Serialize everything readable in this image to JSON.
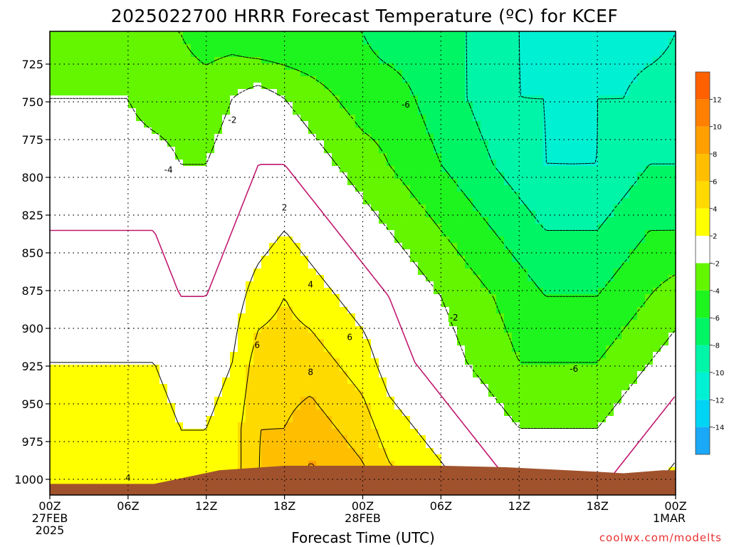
{
  "chart_data": {
    "type": "heatmap",
    "title": "2025022700 HRRR Forecast Temperature (ºC) for KCEF",
    "xlabel": "Forecast Time (UTC)",
    "ylabel": "",
    "x_ticks": [
      {
        "h": 0,
        "lines": [
          "00Z",
          "27FEB",
          "2025"
        ]
      },
      {
        "h": 6,
        "lines": [
          "06Z"
        ]
      },
      {
        "h": 12,
        "lines": [
          "12Z"
        ]
      },
      {
        "h": 18,
        "lines": [
          "18Z"
        ]
      },
      {
        "h": 24,
        "lines": [
          "00Z",
          "28FEB"
        ]
      },
      {
        "h": 30,
        "lines": [
          "06Z"
        ]
      },
      {
        "h": 36,
        "lines": [
          "12Z"
        ]
      },
      {
        "h": 42,
        "lines": [
          "18Z"
        ]
      },
      {
        "h": 48,
        "lines": [
          "00Z",
          "1MAR"
        ]
      }
    ],
    "xlim": [
      0,
      48
    ],
    "y_ticks": [
      725,
      750,
      775,
      800,
      825,
      850,
      875,
      900,
      925,
      950,
      975,
      1000
    ],
    "ylim": [
      1010,
      704
    ],
    "grid": true,
    "colorbar": {
      "labels": [
        "-14",
        "-12",
        "-10",
        "-8",
        "-6",
        "-4",
        "-2",
        "2",
        "4",
        "6",
        "8",
        "10",
        "12"
      ],
      "colors": [
        "#1aa8f7",
        "#00d4f5",
        "#00f0d4",
        "#00f5a8",
        "#00f564",
        "#1ef51e",
        "#64f500",
        "#ffffff",
        "#ffff00",
        "#ffda00",
        "#ffbf00",
        "#ff9f00",
        "#ff7f00",
        "#ff6000"
      ],
      "placement": "right"
    },
    "contour_labels": [
      {
        "text": "-6",
        "h": 27.3,
        "p": 752
      },
      {
        "text": "-6",
        "h": 40.2,
        "p": 927
      },
      {
        "text": "-4",
        "h": 9.1,
        "p": 795
      },
      {
        "text": "-2",
        "h": 14.0,
        "p": 762
      },
      {
        "text": "-2",
        "h": 31.0,
        "p": 893
      },
      {
        "text": "2",
        "h": 18.0,
        "p": 820
      },
      {
        "text": "4",
        "h": 20.0,
        "p": 871
      },
      {
        "text": "4",
        "h": 6.0,
        "p": 999
      },
      {
        "text": "6",
        "h": 15.9,
        "p": 911
      },
      {
        "text": "6",
        "h": 23.0,
        "p": 906
      },
      {
        "text": "8",
        "h": 20.0,
        "p": 929
      }
    ],
    "terrain_color": "#a0522d",
    "series": [
      {
        "values": [
          -3,
          -3,
          -3,
          -3,
          -4,
          -4,
          -5,
          -5,
          -6,
          -6,
          -6,
          -6,
          -6,
          -7,
          -7,
          -8,
          -8,
          -9,
          -10,
          -11,
          -12,
          -12,
          -11,
          -11,
          -10
        ]
      },
      {
        "values": [
          -2,
          -2,
          -2,
          -2,
          -3,
          -3,
          -3,
          -2,
          -1,
          -2,
          -3,
          -4,
          -5,
          -5,
          -6,
          -7,
          -8,
          -9,
          -10,
          -10,
          -11,
          -10,
          -10,
          -9,
          -9
        ]
      },
      {
        "values": [
          -1,
          -1,
          -1,
          -1,
          -1,
          -2,
          -2,
          -1,
          0,
          0,
          -1,
          -2,
          -3,
          -4,
          -5,
          -6,
          -7,
          -8,
          -9,
          -10,
          -10,
          -10,
          -9,
          -8,
          -8
        ]
      },
      {
        "values": [
          0,
          0,
          0,
          0,
          0,
          -1,
          -1,
          0,
          1,
          2,
          1,
          0,
          -1,
          -2,
          -3,
          -4,
          -5,
          -6,
          -7,
          -8,
          -8,
          -8,
          -7,
          -6,
          -6
        ]
      },
      {
        "values": [
          1,
          1,
          1,
          1,
          1,
          0,
          0,
          1,
          3,
          4,
          3,
          2,
          1,
          0,
          -1,
          -2,
          -3,
          -4,
          -5,
          -6,
          -6,
          -6,
          -5,
          -4,
          -3
        ]
      },
      {
        "values": [
          2,
          2,
          2,
          2,
          2,
          1,
          1,
          2,
          5,
          5,
          5,
          4,
          3,
          1,
          0,
          -1,
          -2,
          -3,
          -4,
          -4,
          -4,
          -4,
          -3,
          -2,
          -1
        ]
      },
      {
        "values": [
          3,
          3,
          3,
          3,
          3,
          2,
          2,
          3,
          6,
          6,
          7,
          6,
          5,
          3,
          2,
          1,
          0,
          -1,
          -2,
          -2,
          -2,
          -2,
          -1,
          0,
          1
        ]
      },
      {
        "values": [
          3,
          3,
          3,
          3,
          3,
          2,
          2,
          3,
          6,
          7,
          9,
          8,
          7,
          5,
          4,
          3,
          2,
          1,
          0,
          0,
          0,
          0,
          1,
          2,
          3
        ]
      }
    ]
  },
  "credit": "coolwx.com/modelts"
}
